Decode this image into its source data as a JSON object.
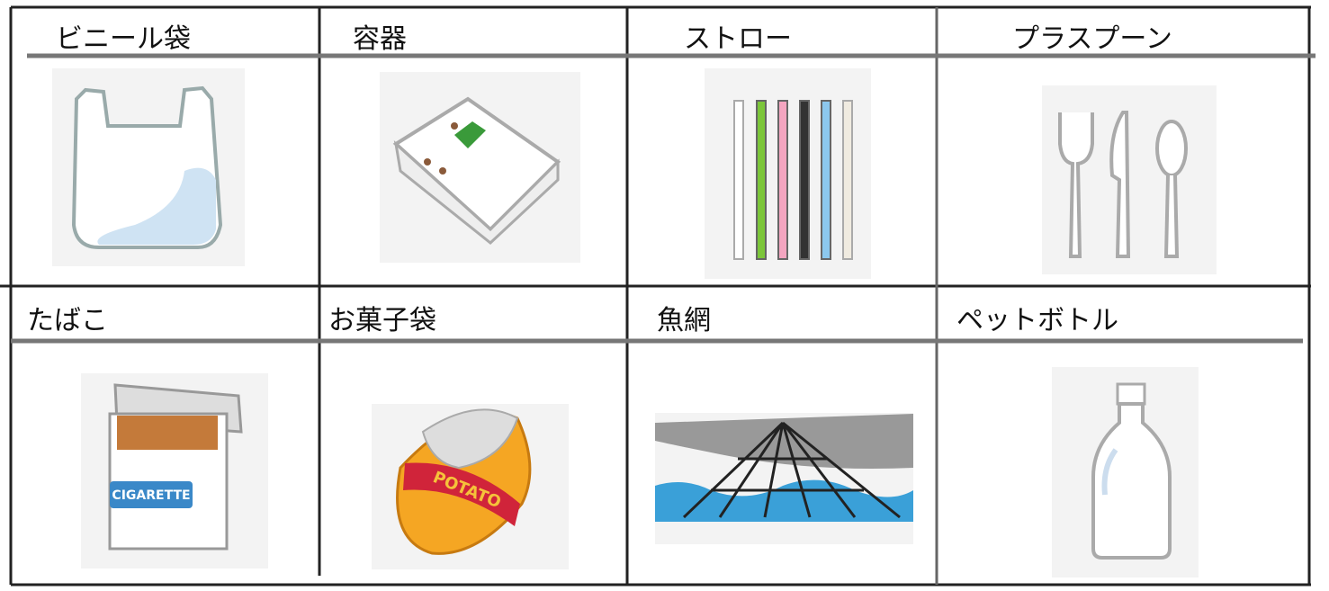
{
  "table": {
    "cells": [
      {
        "label": "ビニール袋"
      },
      {
        "label": "容器"
      },
      {
        "label": "ストロー"
      },
      {
        "label": "プラスプーン"
      },
      {
        "label": "たばこ",
        "image_text": "CIGARETTE"
      },
      {
        "label": "お菓子袋",
        "image_text": "POTATO"
      },
      {
        "label": "魚網"
      },
      {
        "label": "ペットボトル"
      }
    ]
  }
}
